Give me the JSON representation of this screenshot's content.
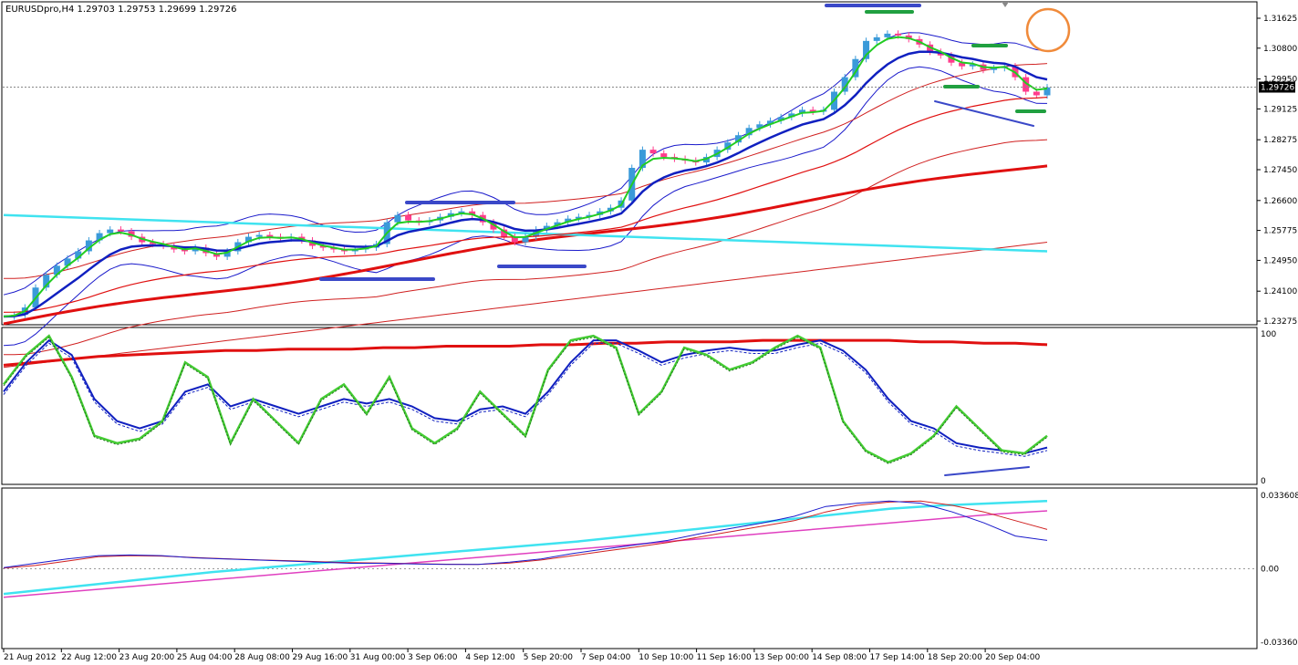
{
  "header": {
    "symbol": "EURUSDpro,H4",
    "open": "1.29703",
    "high": "1.29753",
    "low": "1.29699",
    "close": "1.29726"
  },
  "colors": {
    "bull_candle": "#3a9ad9",
    "bear_candle": "#ff3c8c",
    "ema_fast": "#22cc22",
    "ema_mid": "#1020c0",
    "ema_slow": "#e01010",
    "bands": "#1a1acb",
    "envelope": "#d02020",
    "trendline": "#3fe3f0",
    "level_blue": "#3a48c8",
    "level_green": "#20a040",
    "marker_circle": "#f08a3a",
    "stoch_k": "#44cc33",
    "stoch_slow": "#1020c0",
    "stoch_long": "#e01010",
    "macd_main": "#1a1acb",
    "macd_signal": "#d02020",
    "macd_long": "#3fe3f0",
    "macd_long_signal": "#e040c0"
  },
  "price_axis": {
    "ticks": [
      "1.31625",
      "1.30800",
      "1.29950",
      "1.29125",
      "1.28275",
      "1.27450",
      "1.26600",
      "1.25775",
      "1.24950",
      "1.24100",
      "1.23275"
    ],
    "current_price": "1.29726"
  },
  "stoch_axis": {
    "ticks": [
      "100",
      "0"
    ]
  },
  "macd_axis": {
    "ticks": [
      "0.033608",
      "0.00",
      "-0.03360"
    ]
  },
  "time_axis": {
    "labels": [
      "21 Aug 2012",
      "22 Aug 12:00",
      "23 Aug 20:00",
      "25 Aug 04:00",
      "28 Aug 08:00",
      "29 Aug 16:00",
      "31 Aug 00:00",
      "3 Sep 06:00",
      "4 Sep 12:00",
      "5 Sep 20:00",
      "7 Sep 04:00",
      "10 Sep 10:00",
      "11 Sep 16:00",
      "13 Sep 00:00",
      "14 Sep 08:00",
      "17 Sep 14:00",
      "18 Sep 20:00",
      "20 Sep 04:00"
    ]
  },
  "chart_data": [
    {
      "type": "candlestick",
      "title": "EURUSDpro,H4",
      "x_labels": [
        "21 Aug 2012",
        "22 Aug 12:00",
        "23 Aug 20:00",
        "25 Aug 04:00",
        "28 Aug 08:00",
        "29 Aug 16:00",
        "31 Aug 00:00",
        "3 Sep 06:00",
        "4 Sep 12:00",
        "5 Sep 20:00",
        "7 Sep 04:00",
        "10 Sep 10:00",
        "11 Sep 16:00",
        "13 Sep 00:00",
        "14 Sep 08:00",
        "17 Sep 14:00",
        "18 Sep 20:00",
        "20 Sep 04:00"
      ],
      "close_path": [
        1.234,
        1.2345,
        1.2365,
        1.242,
        1.2455,
        1.248,
        1.25,
        1.252,
        1.255,
        1.257,
        1.258,
        1.2575,
        1.256,
        1.2545,
        1.254,
        1.2535,
        1.2525,
        1.252,
        1.253,
        1.2515,
        1.2505,
        1.252,
        1.2545,
        1.256,
        1.2565,
        1.256,
        1.2555,
        1.256,
        1.255,
        1.2535,
        1.253,
        1.2525,
        1.252,
        1.2525,
        1.253,
        1.254,
        1.26,
        1.262,
        1.2605,
        1.26,
        1.2605,
        1.2615,
        1.2625,
        1.263,
        1.262,
        1.26,
        1.258,
        1.256,
        1.2545,
        1.256,
        1.258,
        1.259,
        1.26,
        1.261,
        1.2615,
        1.262,
        1.263,
        1.264,
        1.266,
        1.275,
        1.28,
        1.279,
        1.278,
        1.2775,
        1.277,
        1.2765,
        1.278,
        1.28,
        1.282,
        1.284,
        1.286,
        1.287,
        1.288,
        1.289,
        1.29,
        1.291,
        1.2905,
        1.291,
        1.296,
        1.3,
        1.305,
        1.31,
        1.311,
        1.312,
        1.3115,
        1.3105,
        1.309,
        1.307,
        1.306,
        1.304,
        1.303,
        1.3035,
        1.302,
        1.3025,
        1.303,
        1.3,
        1.296,
        1.295,
        1.2972
      ],
      "indicators": [
        "EMA (green)",
        "EMA (blue)",
        "EMA (red)",
        "Bollinger Bands (blue)",
        "Envelopes (red)",
        "Trendline (cyan)"
      ],
      "y_range": [
        1.23275,
        1.31625
      ],
      "current_price": 1.29726
    },
    {
      "type": "line",
      "y_range": [
        0,
        100
      ],
      "series": [
        {
          "values": [
            65,
            85,
            98,
            70,
            30,
            25,
            28,
            40,
            80,
            70,
            25,
            55,
            40,
            25,
            55,
            65,
            45,
            70,
            35,
            25,
            35,
            60,
            45,
            30,
            75,
            95,
            98,
            90,
            45,
            60,
            90,
            85,
            75,
            80,
            90,
            98,
            90,
            40,
            20,
            12,
            18,
            30,
            50,
            35,
            20,
            18,
            30
          ]
        },
        {
          "values": [
            60,
            80,
            95,
            85,
            55,
            40,
            35,
            40,
            60,
            65,
            50,
            55,
            50,
            45,
            50,
            55,
            52,
            55,
            50,
            42,
            40,
            48,
            50,
            45,
            60,
            80,
            95,
            95,
            88,
            80,
            85,
            88,
            90,
            88,
            88,
            92,
            95,
            88,
            75,
            55,
            40,
            35,
            25,
            22,
            20,
            18,
            22
          ]
        },
        {
          "values": [
            78,
            80,
            82,
            84,
            85,
            86,
            87,
            88,
            88,
            89,
            89,
            89,
            90,
            90,
            91,
            91,
            91,
            92,
            92,
            93,
            93,
            94,
            94,
            94,
            95,
            95,
            95,
            95,
            95,
            94,
            94,
            93,
            93,
            92
          ]
        }
      ]
    },
    {
      "type": "line",
      "y_range": [
        -0.0336,
        0.033608
      ],
      "series": [
        {
          "values": [
            0.0005,
            0.0025,
            0.0045,
            0.006,
            0.0063,
            0.006,
            0.005,
            0.0045,
            0.004,
            0.0035,
            0.003,
            0.0025,
            0.0025,
            0.0022,
            0.002,
            0.002,
            0.003,
            0.0045,
            0.007,
            0.009,
            0.011,
            0.013,
            0.016,
            0.0185,
            0.021,
            0.024,
            0.0285,
            0.03,
            0.031,
            0.03,
            0.026,
            0.021,
            0.015,
            0.013
          ]
        },
        {
          "values": [
            0.0003,
            0.0015,
            0.0035,
            0.0055,
            0.006,
            0.0058,
            0.0052,
            0.0046,
            0.0041,
            0.0037,
            0.0032,
            0.0028,
            0.0026,
            0.0023,
            0.0021,
            0.002,
            0.0026,
            0.004,
            0.006,
            0.008,
            0.01,
            0.012,
            0.0145,
            0.017,
            0.0195,
            0.022,
            0.026,
            0.029,
            0.0305,
            0.031,
            0.029,
            0.026,
            0.022,
            0.018
          ]
        },
        {
          "values": [
            -0.0115,
            -0.009,
            -0.0065,
            -0.004,
            -0.0015,
            0.0005,
            0.0025,
            0.0045,
            0.0065,
            0.0085,
            0.0105,
            0.0125,
            0.015,
            0.0175,
            0.02,
            0.0225,
            0.025,
            0.0275,
            0.029,
            0.03,
            0.031
          ]
        },
        {
          "values": [
            -0.013,
            -0.011,
            -0.009,
            -0.007,
            -0.005,
            -0.003,
            -0.001,
            0.001,
            0.003,
            0.005,
            0.007,
            0.009,
            0.011,
            0.013,
            0.015,
            0.017,
            0.019,
            0.021,
            0.023,
            0.025,
            0.0265
          ]
        }
      ]
    }
  ]
}
